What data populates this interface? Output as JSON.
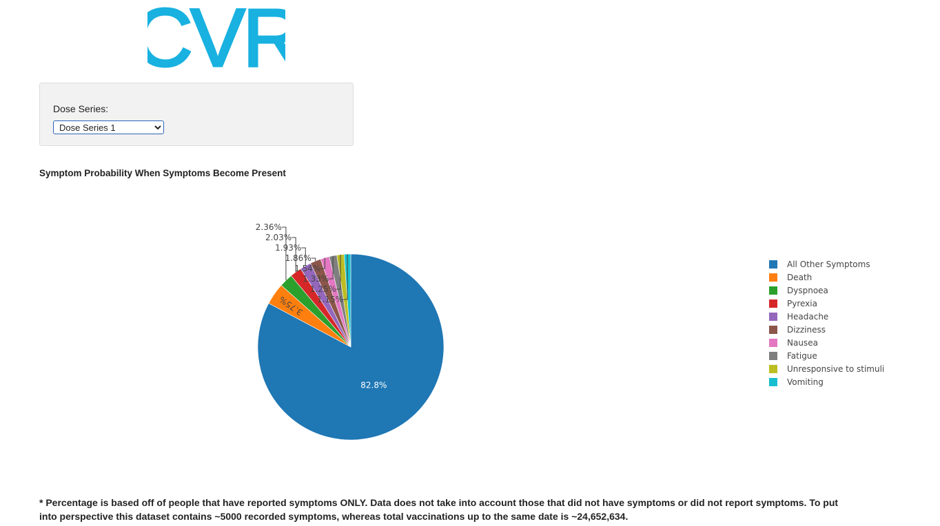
{
  "logo": {
    "text": "CVR",
    "color": "#18b1e0"
  },
  "controls": {
    "dose_label": "Dose Series:",
    "dose_selected": "Dose Series 1"
  },
  "chart_title": "Symptom Probability When Symptoms Become Present",
  "chart_data": {
    "type": "pie",
    "title": "Symptom Probability When Symptoms Become Present",
    "legend_position": "right",
    "slices": [
      {
        "label": "All Other Symptoms",
        "value": 82.8,
        "text": "82.8%",
        "color": "#1f77b4"
      },
      {
        "label": "Death",
        "value": 3.75,
        "text": "3.75%",
        "color": "#ff7f0e"
      },
      {
        "label": "Dyspnoea",
        "value": 2.36,
        "text": "2.36%",
        "color": "#2ca02c"
      },
      {
        "label": "Pyrexia",
        "value": 2.03,
        "text": "2.03%",
        "color": "#d62728"
      },
      {
        "label": "Headache",
        "value": 1.93,
        "text": "1.93%",
        "color": "#9467bd"
      },
      {
        "label": "Dizziness",
        "value": 1.86,
        "text": "1.86%",
        "color": "#8c564b"
      },
      {
        "label": "Nausea",
        "value": 1.54,
        "text": "1.54%",
        "color": "#e377c2"
      },
      {
        "label": "Fatigue",
        "value": 1.33,
        "text": "1.33%",
        "color": "#7f7f7f"
      },
      {
        "label": "Unresponsive to stimuli",
        "value": 1.25,
        "text": "1.25%",
        "color": "#bcbd22"
      },
      {
        "label": "Vomiting",
        "value": 1.15,
        "text": "1.15%",
        "color": "#17becf"
      }
    ]
  },
  "footnote": "* Percentage is based off of people that have reported symptoms ONLY. Data does not take into account those that did not have symptoms or did not report symptoms. To put into perspective this dataset contains ~5000 recorded symptoms, whereas total vaccinations up to the same date is ~24,652,634."
}
